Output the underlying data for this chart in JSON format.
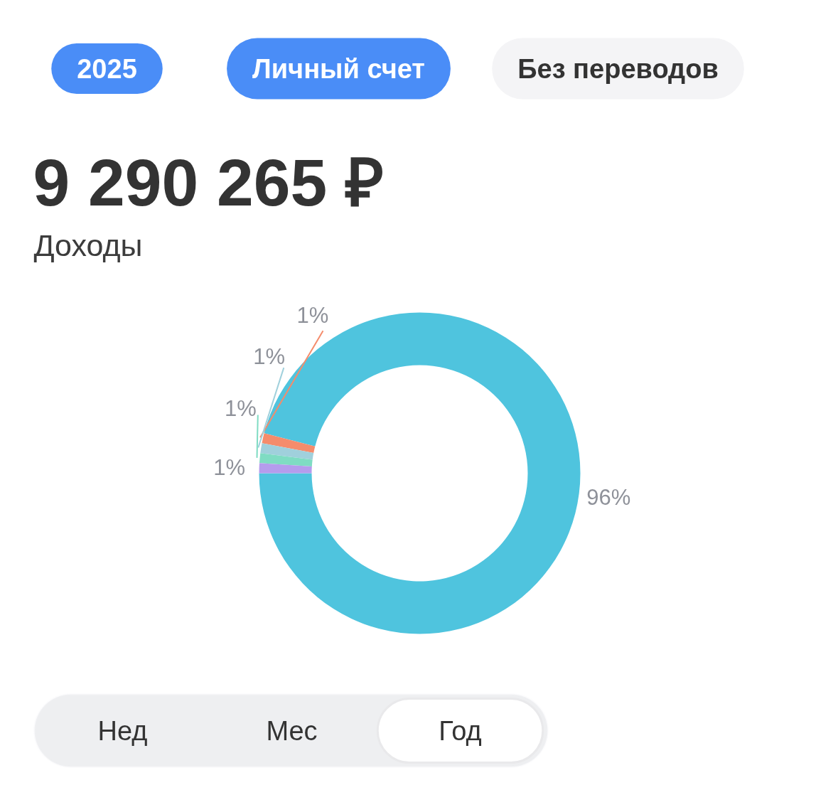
{
  "chart_data": {
    "type": "donut",
    "title": "9 290 265 ₽",
    "subtitle": "Доходы",
    "categories": [
      null,
      null,
      null,
      null,
      null
    ],
    "values": [
      96,
      1,
      1,
      1,
      1
    ],
    "colors": [
      "#4fc4de",
      "#f58c6c",
      "#a0d0dc",
      "#7fdcc3",
      "#b59ced"
    ],
    "value_labels": [
      "96%",
      "1%",
      "1%",
      "1%",
      "1%"
    ],
    "annotations": [
      "2025",
      "Личный счет",
      "Без переводов",
      "Нед",
      "Мес",
      "Год"
    ]
  }
}
